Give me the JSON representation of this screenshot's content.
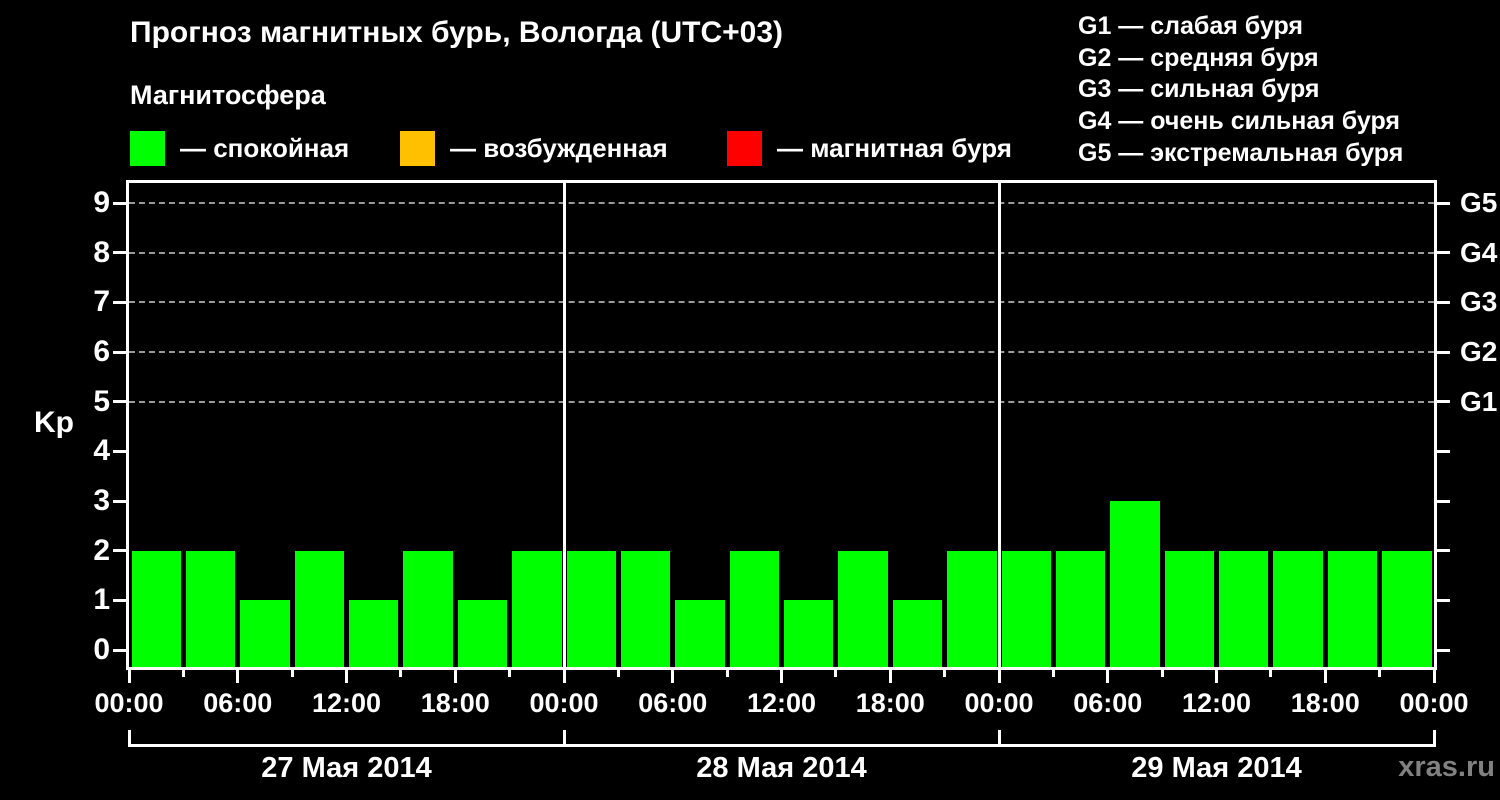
{
  "header": {
    "title": "Прогноз магнитных бурь, Вологда (UTC+03)",
    "subtitle": "Магнитосфера"
  },
  "magnetosphere_legend": [
    {
      "state": "quiet",
      "swatch_color": "#00ff00",
      "label": "— спокойная"
    },
    {
      "state": "excited",
      "swatch_color": "#ffc000",
      "label": "— возбужденная"
    },
    {
      "state": "storm",
      "swatch_color": "#ff0000",
      "label": "— магнитная буря"
    }
  ],
  "storm_scale_legend": [
    {
      "code": "G1",
      "separator": "—",
      "label": "слабая буря"
    },
    {
      "code": "G2",
      "separator": "—",
      "label": "средняя буря"
    },
    {
      "code": "G3",
      "separator": "—",
      "label": "сильная буря"
    },
    {
      "code": "G4",
      "separator": "—",
      "label": "очень сильная буря"
    },
    {
      "code": "G5",
      "separator": "—",
      "label": "экстремальная буря"
    }
  ],
  "watermark": "xras.ru",
  "chart_data": {
    "type": "bar",
    "title": "Прогноз магнитных бурь, Вологда (UTC+03)",
    "xlabel": "",
    "ylabel": "Kp",
    "ylim": [
      0,
      9
    ],
    "y_ticks": [
      0,
      1,
      2,
      3,
      4,
      5,
      6,
      7,
      8,
      9
    ],
    "grid": "horizontal dashed lines at Kp 5,6,7,8,9",
    "bar_color": "#00ff00",
    "hours_per_bar": 3,
    "right_axis_labels": [
      {
        "value": 5,
        "label": "G1"
      },
      {
        "value": 6,
        "label": "G2"
      },
      {
        "value": 7,
        "label": "G3"
      },
      {
        "value": 8,
        "label": "G4"
      },
      {
        "value": 9,
        "label": "G5"
      }
    ],
    "x_tick_labels": [
      "00:00",
      "06:00",
      "12:00",
      "18:00",
      "00:00",
      "06:00",
      "12:00",
      "18:00",
      "00:00",
      "06:00",
      "12:00",
      "18:00",
      "00:00"
    ],
    "days": [
      {
        "date": "27 Мая 2014",
        "kp_values": [
          2,
          2,
          1,
          2,
          1,
          2,
          1,
          2
        ]
      },
      {
        "date": "28 Мая 2014",
        "kp_values": [
          2,
          2,
          1,
          2,
          1,
          2,
          1,
          2
        ]
      },
      {
        "date": "29 Мая 2014",
        "kp_values": [
          2,
          2,
          3,
          2,
          2,
          2,
          2,
          2
        ]
      }
    ]
  }
}
